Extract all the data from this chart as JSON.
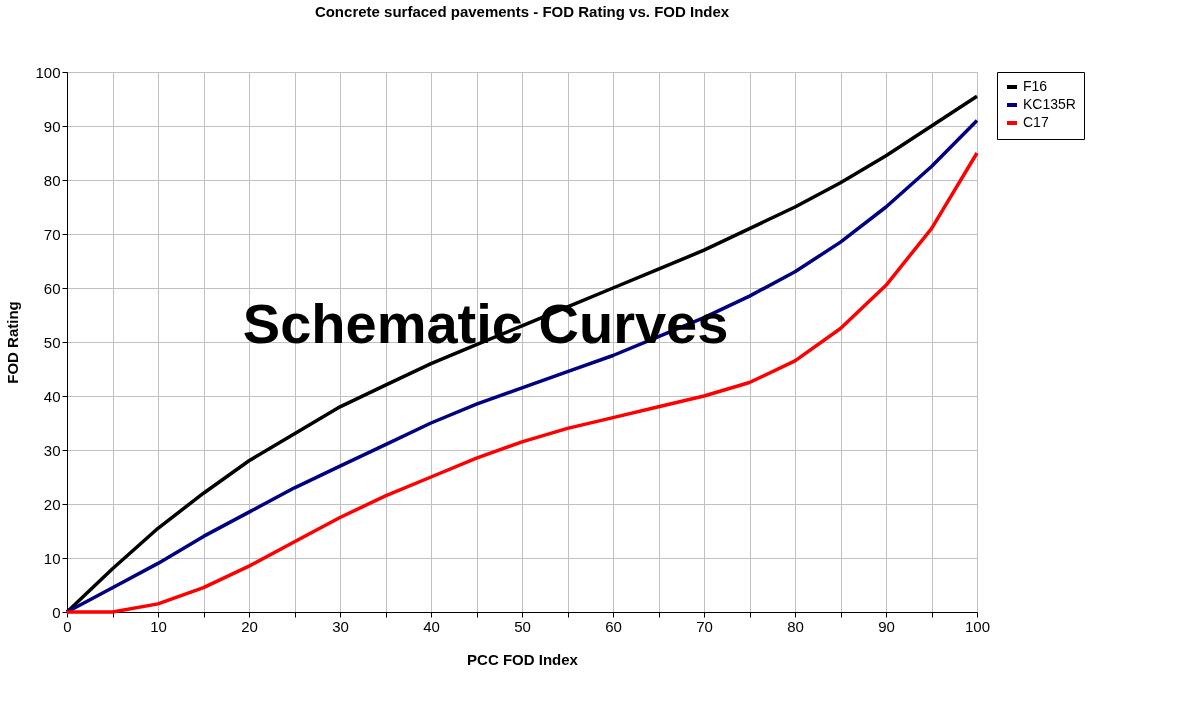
{
  "chart_data": {
    "type": "line",
    "title": "Concrete surfaced pavements - FOD Rating vs. FOD Index",
    "xlabel": "PCC FOD Index",
    "ylabel": "FOD Rating",
    "x": [
      0,
      5,
      10,
      15,
      20,
      25,
      30,
      35,
      40,
      45,
      50,
      55,
      60,
      65,
      70,
      75,
      80,
      85,
      90,
      95,
      100
    ],
    "series": [
      {
        "name": "F16",
        "color": "#000000",
        "values": [
          0,
          8,
          15.5,
          22,
          28,
          33,
          38,
          42,
          46,
          49.5,
          53,
          56.5,
          60,
          63.5,
          67,
          71,
          75,
          79.5,
          84.5,
          90,
          95.5
        ]
      },
      {
        "name": "KC135R",
        "color": "#000080",
        "values": [
          0,
          4.5,
          9,
          14,
          18.5,
          23,
          27,
          31,
          35,
          38.5,
          41.5,
          44.5,
          47.5,
          51,
          54.5,
          58.5,
          63,
          68.5,
          75,
          82.5,
          91
        ]
      },
      {
        "name": "C17",
        "color": "#ff0000",
        "values": [
          0,
          0,
          1.5,
          4.5,
          8.5,
          13,
          17.5,
          21.5,
          25,
          28.5,
          31.5,
          34,
          36,
          38,
          40,
          42.5,
          46.5,
          52.5,
          60.5,
          71,
          85
        ]
      }
    ],
    "xlim": [
      0,
      100
    ],
    "ylim": [
      0,
      100
    ],
    "xticks": [
      0,
      {
        "value": 5,
        "label": null
      },
      10,
      {
        "value": 15,
        "label": null
      },
      20,
      {
        "value": 25,
        "label": null
      },
      30,
      {
        "value": 35,
        "label": null
      },
      40,
      {
        "value": 45,
        "label": null
      },
      50,
      {
        "value": 55,
        "label": null
      },
      60,
      {
        "value": 65,
        "label": null
      },
      70,
      {
        "value": 75,
        "label": null
      },
      80,
      {
        "value": 85,
        "label": null
      },
      90,
      {
        "value": 95,
        "label": null
      },
      100
    ],
    "yticks": [
      0,
      10,
      20,
      30,
      40,
      50,
      60,
      70,
      80,
      90,
      100
    ],
    "grid": true,
    "legend": "right",
    "marker": "none",
    "line_style": "solid",
    "annotations": [
      "Schematic Curves"
    ]
  }
}
